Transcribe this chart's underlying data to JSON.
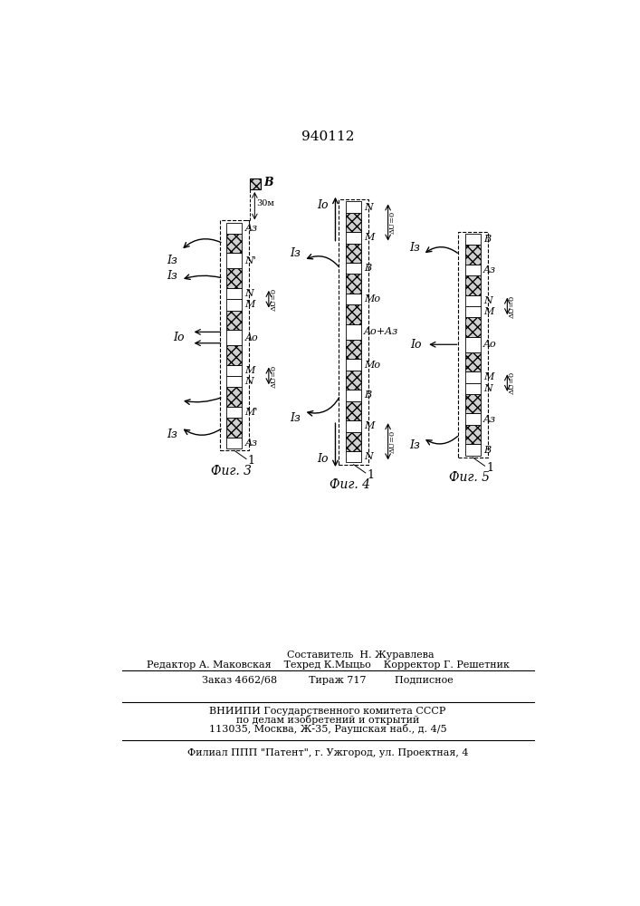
{
  "title": "940112",
  "bg_color": "#ffffff",
  "fig3_caption": "Фиг. 3",
  "fig4_caption": "Фиг. 4",
  "fig5_caption": "Фиг. 5",
  "footer_line1": "Составитель  Н. Журавлева",
  "footer_line2": "Редактор А. Маковская    Техред К.Мыцьо    Корректор Г. Решетник",
  "footer_line3": "Заказ 4662/68          Тираж 717         Подписное",
  "footer_line4": "ВНИИПИ Государственного комитета СССР",
  "footer_line5": "по делам изобретений и открытий",
  "footer_line6": "113035, Москва, Ж-35, Раушская наб., д. 4/5",
  "footer_line7": "Филиал ППП \"Патент\", г. Ужгород, ул. Проектная, 4"
}
